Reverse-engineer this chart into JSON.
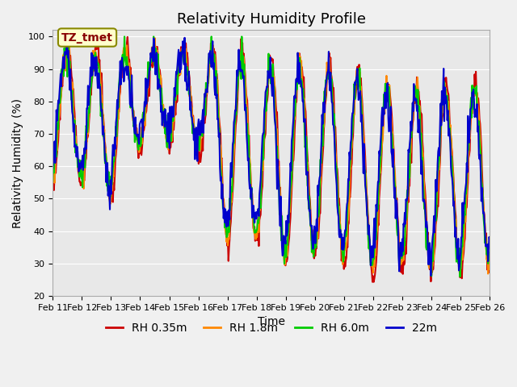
{
  "title": "Relativity Humidity Profile",
  "xlabel": "Time",
  "ylabel": "Relativity Humidity (%)",
  "ylim": [
    20,
    102
  ],
  "yticks": [
    20,
    30,
    40,
    50,
    60,
    70,
    80,
    90,
    100
  ],
  "date_labels": [
    "Feb 11",
    "Feb 12",
    "Feb 13",
    "Feb 14",
    "Feb 15",
    "Feb 16",
    "Feb 17",
    "Feb 18",
    "Feb 19",
    "Feb 20",
    "Feb 21",
    "Feb 22",
    "Feb 23",
    "Feb 24",
    "Feb 25",
    "Feb 26"
  ],
  "series": [
    {
      "label": "RH 0.35m",
      "color": "#cc0000"
    },
    {
      "label": "RH 1.8m",
      "color": "#ff8800"
    },
    {
      "label": "RH 6.0m",
      "color": "#00cc00"
    },
    {
      "label": "22m",
      "color": "#0000cc"
    }
  ],
  "annotation_text": "TZ_tmet",
  "annotation_color": "#880000",
  "annotation_bg": "#ffffcc",
  "annotation_border": "#888800",
  "background_color": "#e8e8e8",
  "line_width": 1.5,
  "title_fontsize": 13,
  "axis_fontsize": 10,
  "legend_fontsize": 10
}
